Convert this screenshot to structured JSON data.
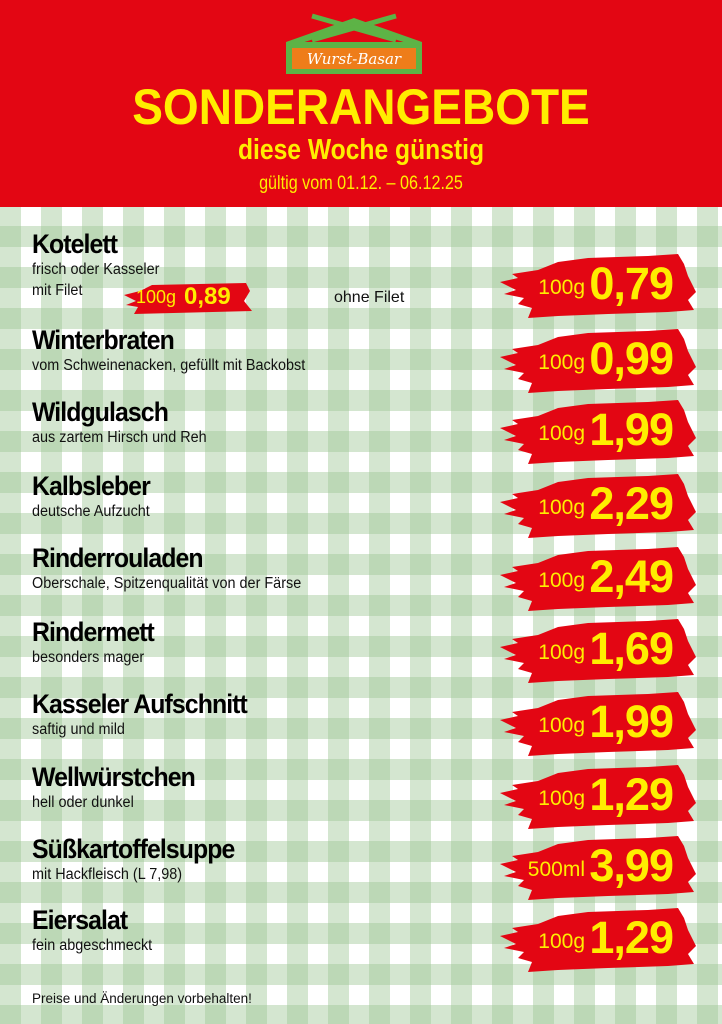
{
  "header": {
    "logo_text": "Wurst-Basar",
    "title": "SONDERANGEBOTE",
    "subtitle": "diese Woche günstig",
    "validity": "gültig vom 01.12. – 06.12.25"
  },
  "colors": {
    "red": "#e30613",
    "yellow": "#ffed00",
    "logo_green": "#5db346",
    "logo_orange": "#ee7d1a"
  },
  "kotelett_extra": {
    "with_filet_unit": "100g",
    "with_filet_price": "0,89",
    "without_filet_label": "ohne Filet"
  },
  "items": [
    {
      "title": "Kotelett",
      "desc": [
        "frisch oder Kasseler",
        "mit Filet"
      ],
      "unit": "100g",
      "price": "0,79"
    },
    {
      "title": "Winterbraten",
      "desc": [
        "vom Schweinenacken, gefüllt mit Backobst"
      ],
      "unit": "100g",
      "price": "0,99"
    },
    {
      "title": "Wildgulasch",
      "desc": [
        "aus zartem Hirsch und Reh"
      ],
      "unit": "100g",
      "price": "1,99"
    },
    {
      "title": "Kalbsleber",
      "desc": [
        "deutsche Aufzucht"
      ],
      "unit": "100g",
      "price": "2,29"
    },
    {
      "title": "Rinderrouladen",
      "desc": [
        "Oberschale, Spitzenqualität von der Färse"
      ],
      "unit": "100g",
      "price": "2,49"
    },
    {
      "title": "Rindermett",
      "desc": [
        "besonders mager"
      ],
      "unit": "100g",
      "price": "1,69"
    },
    {
      "title": "Kasseler Aufschnitt",
      "desc": [
        "saftig und mild"
      ],
      "unit": "100g",
      "price": "1,99"
    },
    {
      "title": "Wellwürstchen",
      "desc": [
        "hell oder dunkel"
      ],
      "unit": "100g",
      "price": "1,29"
    },
    {
      "title": "Süßkartoffelsuppe",
      "desc": [
        "mit Hackfleisch (L 7,98)"
      ],
      "unit": "500ml",
      "price": "3,99"
    },
    {
      "title": "Eiersalat",
      "desc": [
        "fein abgeschmeckt"
      ],
      "unit": "100g",
      "price": "1,29"
    }
  ],
  "footer": "Preise und Änderungen vorbehalten!"
}
